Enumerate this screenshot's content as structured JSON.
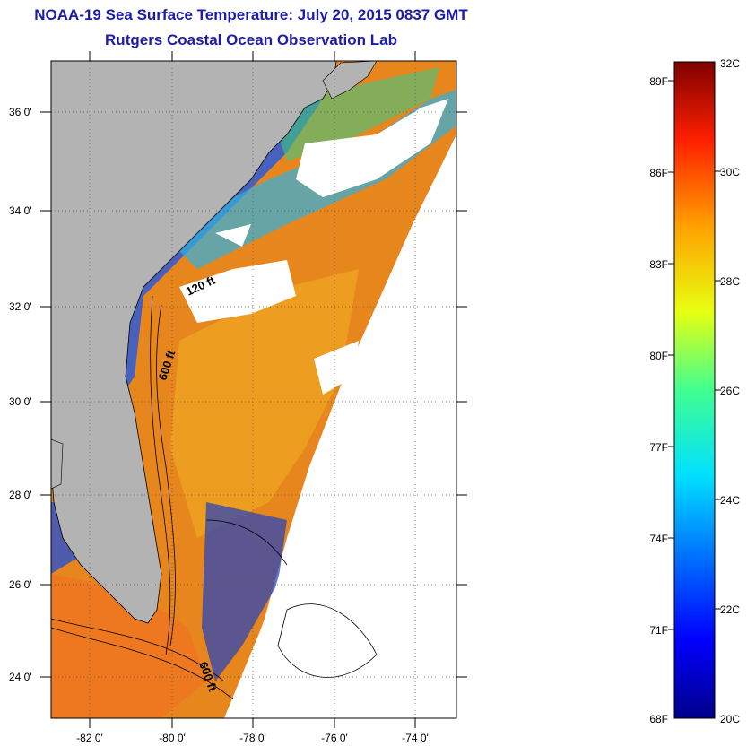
{
  "title": "NOAA-19 Sea Surface Temperature:  July 20, 2015 0837 GMT",
  "subtitle": "Rutgers Coastal Ocean Observation Lab",
  "map": {
    "lat_ticks": [
      "24 0'",
      "26 0'",
      "28 0'",
      "30 0'",
      "32 0'",
      "34 0'",
      "36 0'"
    ],
    "lon_ticks": [
      "-82 0'",
      "-80 0'",
      "-78 0'",
      "-76 0'",
      "-74 0'"
    ],
    "contour_labels": [
      "120 ft",
      "600 ft",
      "600 ft"
    ],
    "colors": {
      "land": "#b3b3b3",
      "cloud": "#ffffff",
      "warm": "#e86a1e",
      "cool": "#1e4ad0"
    }
  },
  "colorbar": {
    "f_labels": [
      "89F",
      "86F",
      "83F",
      "80F",
      "77F",
      "74F",
      "71F",
      "68F"
    ],
    "c_labels": [
      "32C",
      "30C",
      "28C",
      "26C",
      "24C",
      "22C",
      "20C"
    ],
    "min_c": 20,
    "max_c": 32
  }
}
